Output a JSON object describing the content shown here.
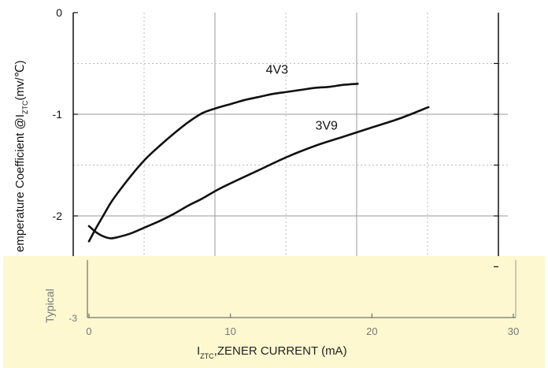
{
  "chart_data": {
    "type": "line",
    "xlabel_main": "I",
    "xlabel_sub": "ZTC",
    "xlabel_rest": ",ZENER CURRENT (mA)",
    "ylabel_main": "emperature Coefficient @I",
    "ylabel_sub": "ZTC",
    "ylabel_rest": "(mv/℃)",
    "ylabel_lower": "Typical",
    "xlim": [
      0,
      30
    ],
    "ylim": [
      -3,
      0
    ],
    "x_ticks": [
      0,
      10,
      20,
      30
    ],
    "x_tick_labels": [
      "0",
      "10",
      "20",
      "30"
    ],
    "y_ticks": [
      0,
      -1,
      -2,
      -3
    ],
    "y_tick_labels": [
      "0",
      "-1",
      "-2",
      "-3"
    ],
    "grid": "dotted minor + solid major",
    "band_color": "#fdf8d0",
    "series": [
      {
        "name": "4V3",
        "color": "#111111",
        "x": [
          0.0,
          0.5,
          1.0,
          1.5,
          2.0,
          3.0,
          4.0,
          5.0,
          6.0,
          7.0,
          8.0,
          9.0,
          10.0,
          11.0,
          12.0,
          13.0,
          14.0,
          15.0,
          16.0,
          17.0,
          18.0,
          19.0
        ],
        "y": [
          -2.25,
          -2.12,
          -2.0,
          -1.88,
          -1.78,
          -1.6,
          -1.44,
          -1.31,
          -1.19,
          -1.08,
          -0.99,
          -0.94,
          -0.9,
          -0.86,
          -0.83,
          -0.8,
          -0.78,
          -0.76,
          -0.74,
          -0.73,
          -0.71,
          -0.7
        ]
      },
      {
        "name": "3V9",
        "color": "#111111",
        "x": [
          0.0,
          0.5,
          1.0,
          1.5,
          2.0,
          3.0,
          4.0,
          5.0,
          6.0,
          7.0,
          8.0,
          9.0,
          10.0,
          12.0,
          14.0,
          16.0,
          18.0,
          20.0,
          22.0,
          24.0
        ],
        "y": [
          -2.1,
          -2.16,
          -2.2,
          -2.22,
          -2.21,
          -2.17,
          -2.11,
          -2.05,
          -1.98,
          -1.9,
          -1.83,
          -1.75,
          -1.68,
          -1.55,
          -1.42,
          -1.31,
          -1.22,
          -1.13,
          -1.04,
          -0.93
        ]
      }
    ],
    "annotations": [
      {
        "text": "4V3",
        "x": 12.5,
        "y": -0.6
      },
      {
        "text": "3V9",
        "x": 16.0,
        "y": -1.15
      }
    ]
  }
}
